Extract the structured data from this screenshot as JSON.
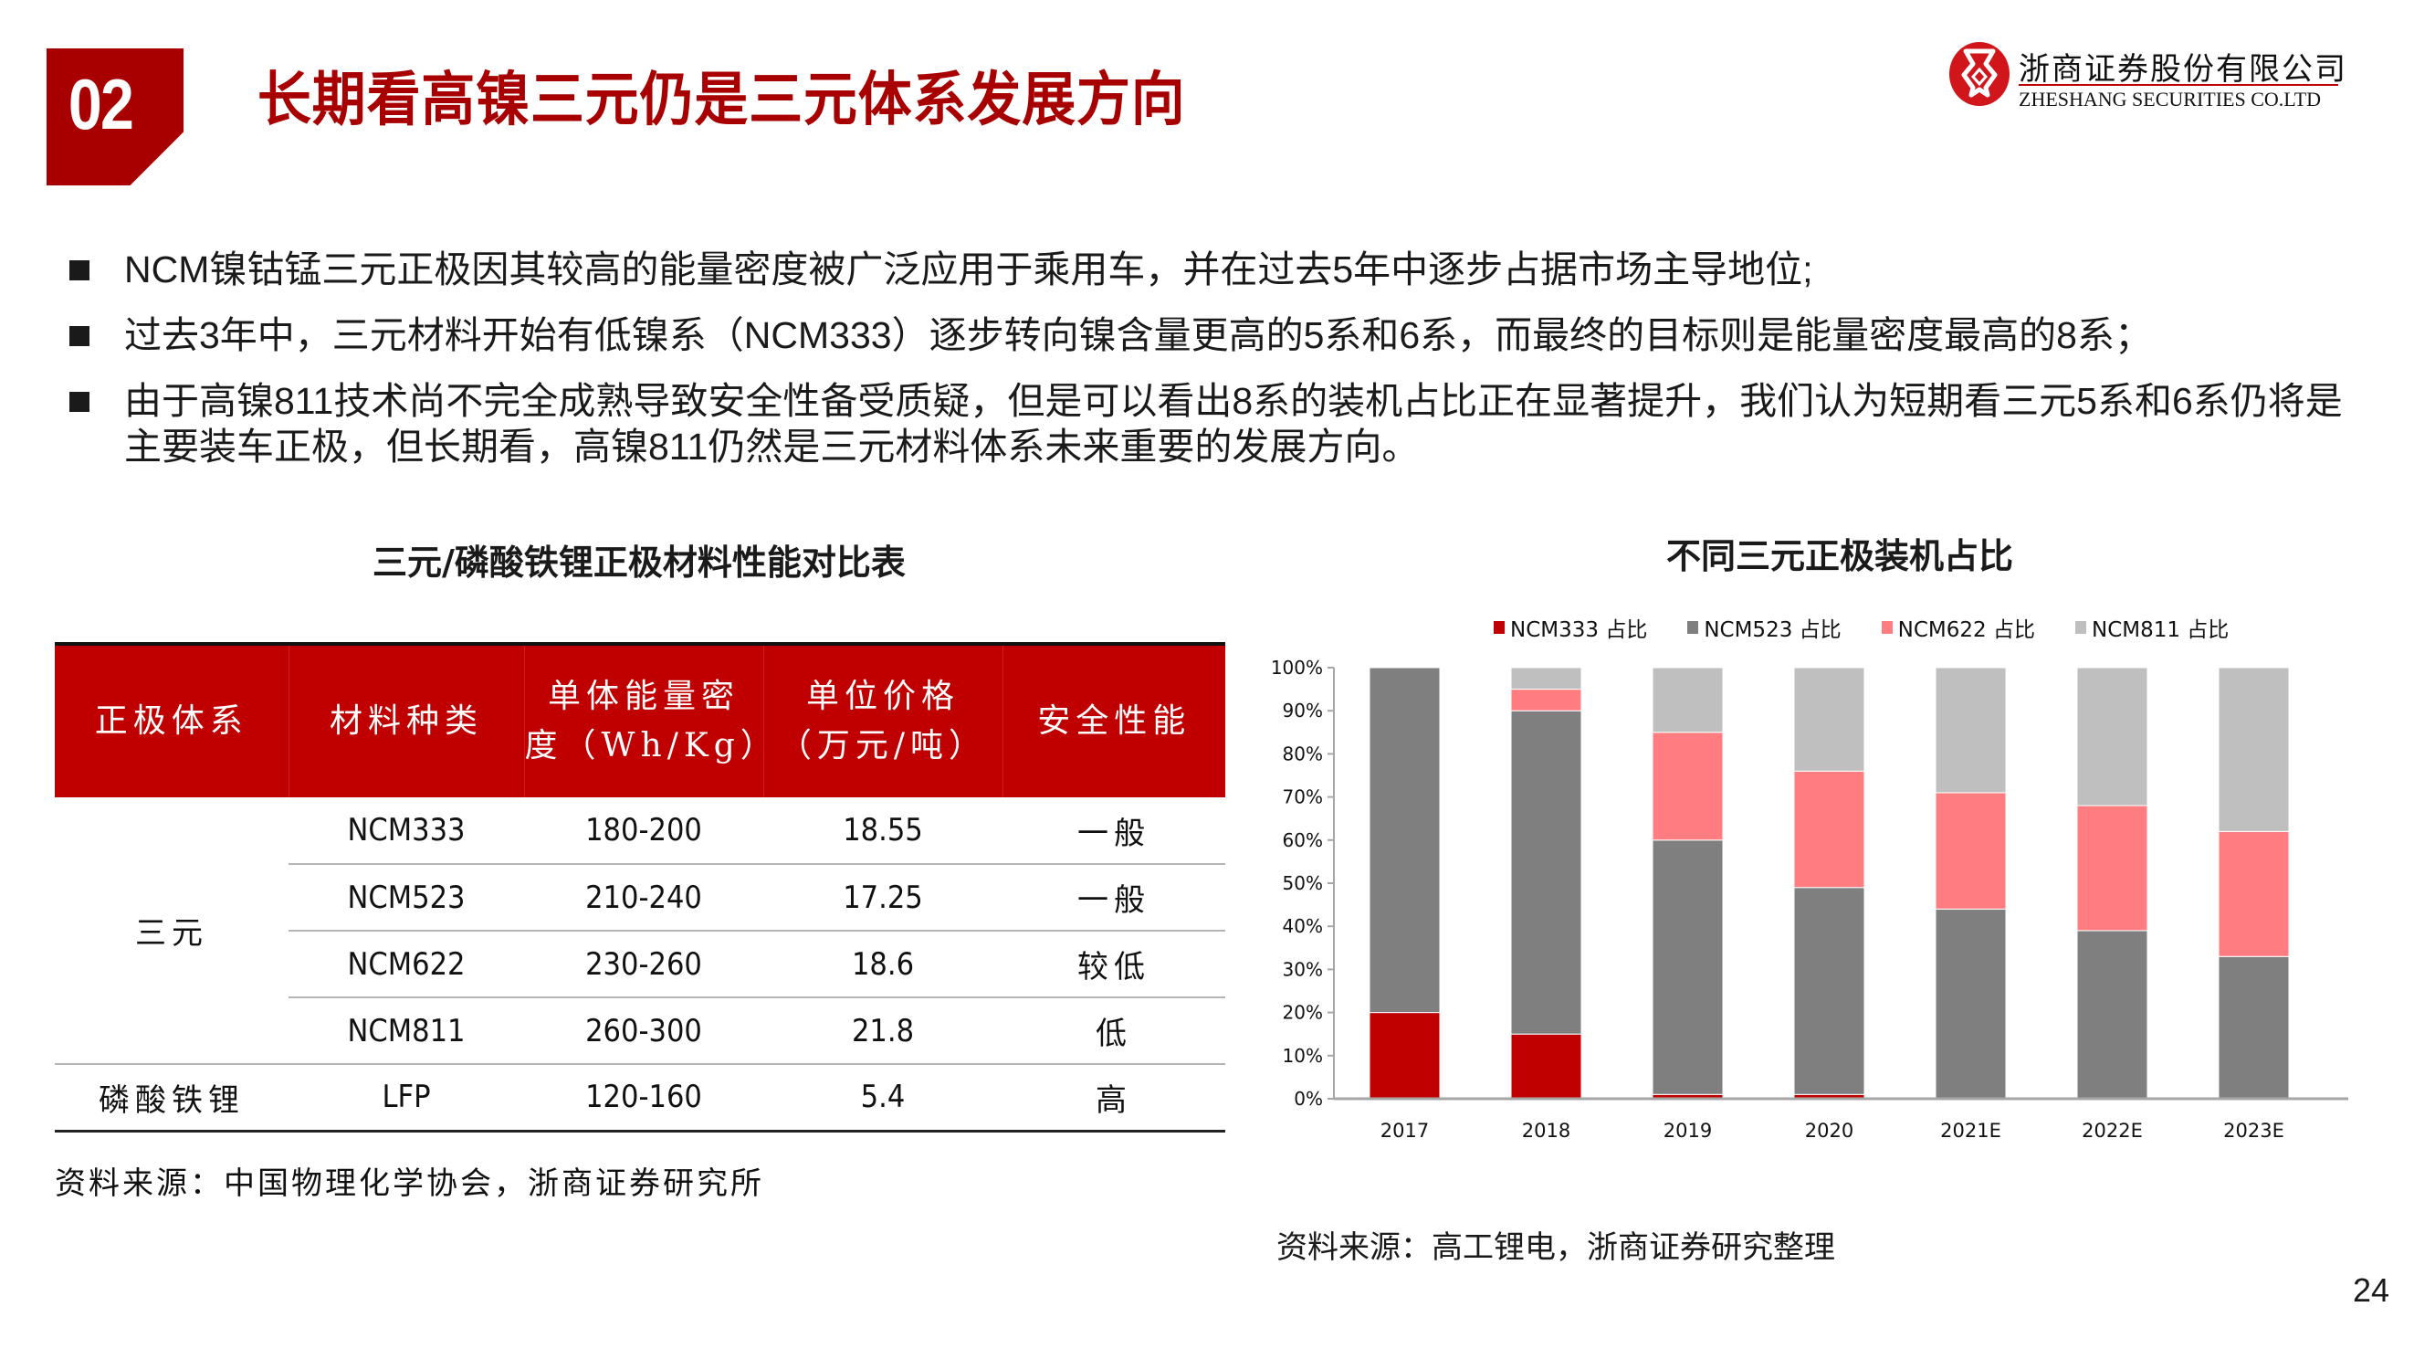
{
  "header": {
    "section_number": "02",
    "title": "长期看高镍三元仍是三元体系发展方向",
    "logo": {
      "name_cn": "浙商证券股份有限公司",
      "name_en": "ZHESHANG SECURITIES CO.LTD",
      "icon": "zheshang-logo-icon"
    },
    "accent_color": "#a80000"
  },
  "bullets": [
    {
      "text": "NCM镍钴锰三元正极因其较高的能量密度被广泛应用于乘用车，并在过去5年中逐步占据市场主导地位;"
    },
    {
      "text": "过去3年中，三元材料开始有低镍系（NCM333）逐步转向镍含量更高的5系和6系，而最终的目标则是能量密度最高的8系；"
    },
    {
      "text": "由于高镍811技术尚不完全成熟导致安全性备受质疑，但是可以看出8系的装机占比正在显著提升，我们认为短期看三元5系和6系仍将是主要装车正极，但长期看，高镍811仍然是三元材料体系未来重要的发展方向。"
    }
  ],
  "table": {
    "title": "三元/磷酸铁锂正极材料性能对比表",
    "header_color": "#c00000",
    "columns": [
      "正极体系",
      "材料种类",
      "单体能量密度（Wh/Kg）",
      "单位价格（万元/吨）",
      "安全性能"
    ],
    "column_lines": [
      [
        "正极体系"
      ],
      [
        "材料种类"
      ],
      [
        "单体能量密",
        "度（Wh/Kg）"
      ],
      [
        "单位价格",
        "（万元/吨）"
      ],
      [
        "安全性能"
      ]
    ],
    "groups": [
      {
        "system": "三元",
        "rows": [
          {
            "material": "NCM333",
            "energy_density": "180-200",
            "price": "18.55",
            "safety": "一般"
          },
          {
            "material": "NCM523",
            "energy_density": "210-240",
            "price": "17.25",
            "safety": "一般"
          },
          {
            "material": "NCM622",
            "energy_density": "230-260",
            "price": "18.6",
            "safety": "较低"
          },
          {
            "material": "NCM811",
            "energy_density": "260-300",
            "price": "21.8",
            "safety": "低"
          }
        ]
      },
      {
        "system": "磷酸铁锂",
        "rows": [
          {
            "material": "LFP",
            "energy_density": "120-160",
            "price": "5.4",
            "safety": "高"
          }
        ]
      }
    ],
    "source": "资料来源：中国物理化学协会，浙商证券研究所"
  },
  "chart_data": {
    "type": "bar",
    "stacked": true,
    "title": "不同三元正极装机占比",
    "xlabel": "",
    "ylabel": "",
    "categories": [
      "2017",
      "2018",
      "2019",
      "2020",
      "2021E",
      "2022E",
      "2023E"
    ],
    "series": [
      {
        "name": "NCM333 占比",
        "color": "#c00000",
        "values": [
          20,
          15,
          1,
          1,
          0,
          0,
          0
        ]
      },
      {
        "name": "NCM523 占比",
        "color": "#7f7f7f",
        "values": [
          80,
          75,
          59,
          48,
          44,
          39,
          33
        ]
      },
      {
        "name": "NCM622 占比",
        "color": "#ff7c80",
        "values": [
          0,
          5,
          25,
          27,
          27,
          29,
          29
        ]
      },
      {
        "name": "NCM811 占比",
        "color": "#bfbfbf",
        "values": [
          0,
          5,
          15,
          24,
          29,
          32,
          38
        ]
      }
    ],
    "yticks": [
      "0%",
      "10%",
      "20%",
      "30%",
      "40%",
      "50%",
      "60%",
      "70%",
      "80%",
      "90%",
      "100%"
    ],
    "ylim": [
      0,
      100
    ],
    "grid": false,
    "legend_position": "top",
    "source": "资料来源：高工锂电，浙商证券研究整理"
  },
  "footer": {
    "page_number": "24"
  }
}
